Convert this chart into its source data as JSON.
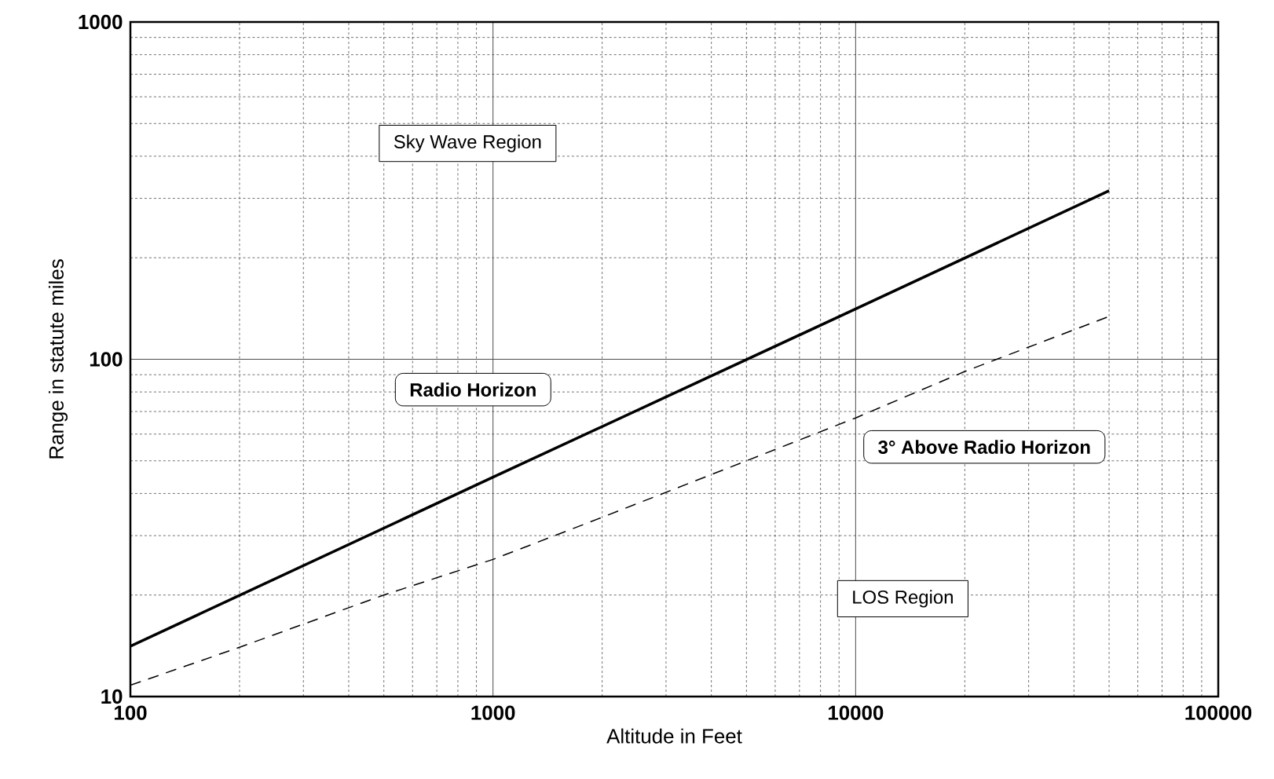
{
  "chart_data": {
    "type": "line",
    "xlabel": "Altitude in Feet",
    "ylabel": "Range in statute miles",
    "log": "xy",
    "xlim": [
      100,
      100000
    ],
    "ylim": [
      10,
      1000
    ],
    "xticks": [
      100,
      1000,
      10000,
      100000
    ],
    "yticks": [
      10,
      100,
      1000
    ],
    "grid": true,
    "marker": "none",
    "series": [
      {
        "color": "#000000",
        "line_style": "solid",
        "x": [
          100,
          1000,
          10000,
          50000
        ],
        "values": [
          14.1,
          44.7,
          141,
          316
        ]
      },
      {
        "color": "#000000",
        "line_style": "dashed",
        "x": [
          100,
          200,
          500,
          1000,
          2000,
          5000,
          10000,
          20000,
          50000
        ],
        "values": [
          10.8,
          14,
          20,
          25.5,
          34,
          50,
          67,
          92,
          134
        ]
      }
    ],
    "annotations": [
      "Sky Wave Region",
      "Radio Horizon",
      "3° Above Radio Horizon",
      "LOS Region"
    ]
  }
}
